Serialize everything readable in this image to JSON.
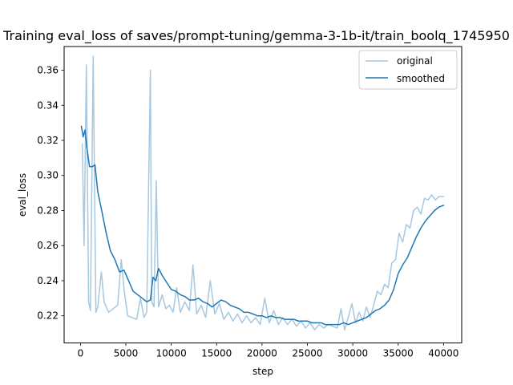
{
  "chart_data": {
    "type": "line",
    "title": "Training eval_loss of saves/prompt-tuning/gemma-3-1b-it/train_boolq_1745950",
    "xlabel": "step",
    "ylabel": "eval_loss",
    "xlim": [
      -1800,
      42000
    ],
    "ylim": [
      0.2045,
      0.3735
    ],
    "x_ticks": [
      0,
      5000,
      10000,
      15000,
      20000,
      25000,
      30000,
      35000,
      40000
    ],
    "x_tick_labels": [
      "0",
      "5000",
      "10000",
      "15000",
      "20000",
      "25000",
      "30000",
      "35000",
      "40000"
    ],
    "y_ticks": [
      0.22,
      0.24,
      0.26,
      0.28,
      0.3,
      0.32,
      0.34,
      0.36
    ],
    "y_tick_labels": [
      "0.22",
      "0.24",
      "0.26",
      "0.28",
      "0.30",
      "0.32",
      "0.34",
      "0.36"
    ],
    "grid": false,
    "legend_position": "top-right",
    "series": [
      {
        "name": "original",
        "color": "#a6c8e0",
        "x": [
          200,
          400,
          650,
          900,
          1100,
          1400,
          1700,
          1900,
          2300,
          2600,
          3100,
          3600,
          4100,
          4500,
          4800,
          5200,
          5700,
          6200,
          6600,
          7000,
          7300,
          7700,
          7850,
          8100,
          8350,
          8600,
          9000,
          9400,
          9800,
          10200,
          10600,
          11000,
          11500,
          12000,
          12400,
          12800,
          13300,
          13800,
          14300,
          14800,
          15300,
          15800,
          16300,
          16800,
          17300,
          17800,
          18300,
          18800,
          19300,
          19800,
          20300,
          20800,
          21300,
          21800,
          22300,
          22800,
          23300,
          23800,
          24300,
          24800,
          25300,
          25800,
          26300,
          26800,
          27300,
          27800,
          28300,
          28700,
          29100,
          29500,
          29900,
          30300,
          30700,
          31100,
          31500,
          31900,
          32300,
          32700,
          33100,
          33500,
          33900,
          34300,
          34700,
          35100,
          35500,
          35900,
          36300,
          36700,
          37100,
          37500,
          37900,
          38300,
          38700,
          39100,
          39500,
          40000
        ],
        "y": [
          0.318,
          0.26,
          0.363,
          0.228,
          0.223,
          0.368,
          0.222,
          0.225,
          0.245,
          0.228,
          0.222,
          0.224,
          0.226,
          0.252,
          0.235,
          0.22,
          0.219,
          0.218,
          0.23,
          0.219,
          0.222,
          0.36,
          0.228,
          0.225,
          0.297,
          0.225,
          0.232,
          0.224,
          0.226,
          0.222,
          0.236,
          0.222,
          0.228,
          0.223,
          0.249,
          0.221,
          0.226,
          0.219,
          0.24,
          0.221,
          0.227,
          0.218,
          0.222,
          0.217,
          0.221,
          0.216,
          0.22,
          0.216,
          0.219,
          0.215,
          0.23,
          0.216,
          0.223,
          0.215,
          0.219,
          0.215,
          0.218,
          0.214,
          0.217,
          0.213,
          0.216,
          0.212,
          0.215,
          0.213,
          0.215,
          0.214,
          0.213,
          0.224,
          0.212,
          0.219,
          0.227,
          0.216,
          0.222,
          0.217,
          0.225,
          0.219,
          0.226,
          0.234,
          0.232,
          0.238,
          0.236,
          0.25,
          0.252,
          0.267,
          0.262,
          0.272,
          0.27,
          0.28,
          0.282,
          0.278,
          0.287,
          0.286,
          0.289,
          0.286,
          0.288,
          0.288
        ]
      },
      {
        "name": "smoothed",
        "color": "#1f77b4",
        "x": [
          100,
          300,
          500,
          700,
          1000,
          1300,
          1600,
          1900,
          2300,
          2800,
          3300,
          3800,
          4300,
          4800,
          5300,
          5800,
          6300,
          6800,
          7300,
          7700,
          8000,
          8300,
          8600,
          9000,
          9500,
          10000,
          10500,
          11000,
          11500,
          12000,
          12500,
          13000,
          13500,
          14000,
          14500,
          15000,
          15500,
          16000,
          16500,
          17000,
          17500,
          18000,
          18500,
          19000,
          19500,
          20000,
          20500,
          21000,
          21500,
          22000,
          22500,
          23000,
          23500,
          24000,
          24500,
          25000,
          25500,
          26000,
          26500,
          27000,
          27500,
          28000,
          28500,
          29000,
          29500,
          30000,
          30500,
          31000,
          31500,
          32000,
          32500,
          33000,
          33500,
          34000,
          34500,
          35000,
          35500,
          36000,
          36500,
          37000,
          37500,
          38000,
          38500,
          39000,
          39500,
          40000
        ],
        "y": [
          0.328,
          0.322,
          0.326,
          0.316,
          0.305,
          0.305,
          0.306,
          0.291,
          0.281,
          0.268,
          0.257,
          0.252,
          0.245,
          0.246,
          0.24,
          0.234,
          0.232,
          0.23,
          0.228,
          0.229,
          0.242,
          0.24,
          0.247,
          0.243,
          0.239,
          0.235,
          0.234,
          0.232,
          0.231,
          0.229,
          0.229,
          0.23,
          0.228,
          0.227,
          0.225,
          0.227,
          0.229,
          0.228,
          0.226,
          0.225,
          0.224,
          0.222,
          0.222,
          0.221,
          0.22,
          0.22,
          0.219,
          0.22,
          0.219,
          0.219,
          0.218,
          0.218,
          0.218,
          0.217,
          0.217,
          0.217,
          0.216,
          0.216,
          0.216,
          0.215,
          0.215,
          0.215,
          0.215,
          0.216,
          0.215,
          0.216,
          0.217,
          0.218,
          0.219,
          0.221,
          0.223,
          0.224,
          0.226,
          0.229,
          0.235,
          0.244,
          0.249,
          0.253,
          0.259,
          0.265,
          0.27,
          0.274,
          0.277,
          0.28,
          0.282,
          0.283
        ]
      }
    ]
  }
}
